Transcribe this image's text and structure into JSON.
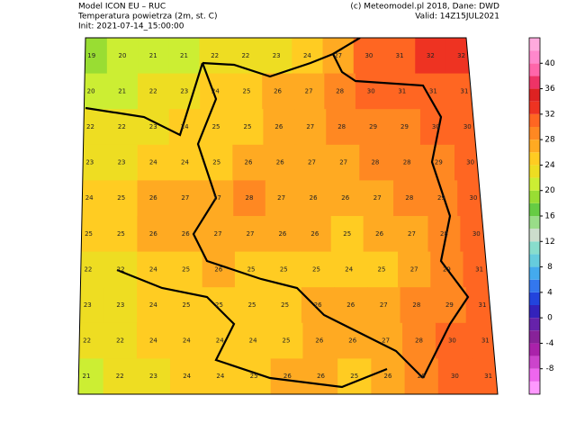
{
  "header": {
    "left": [
      "Model ICON EU – RUC",
      "Temperatura powietrza (2m, st. C)",
      "Init: 2021-07-14_15:00:00"
    ],
    "right": [
      "(c) Meteomodel.pl 2018, Dane: DWD",
      "Valid: 14Z15JUL2021"
    ]
  },
  "temperature_grid": [
    [
      19,
      20,
      21,
      21,
      22,
      22,
      23,
      24,
      27,
      30,
      31,
      32,
      32
    ],
    [
      20,
      21,
      22,
      23,
      24,
      25,
      26,
      27,
      28,
      30,
      31,
      31,
      31
    ],
    [
      22,
      22,
      23,
      24,
      25,
      25,
      26,
      27,
      28,
      29,
      29,
      30,
      30
    ],
    [
      23,
      23,
      24,
      24,
      25,
      26,
      26,
      27,
      27,
      28,
      28,
      29,
      30
    ],
    [
      24,
      25,
      26,
      27,
      27,
      28,
      27,
      26,
      26,
      27,
      28,
      29,
      30
    ],
    [
      25,
      25,
      26,
      26,
      27,
      27,
      26,
      26,
      25,
      26,
      27,
      28,
      30
    ],
    [
      22,
      22,
      24,
      25,
      26,
      25,
      25,
      25,
      24,
      25,
      27,
      29,
      31
    ],
    [
      23,
      23,
      24,
      25,
      25,
      25,
      25,
      26,
      26,
      27,
      28,
      29,
      31
    ],
    [
      22,
      22,
      24,
      24,
      24,
      24,
      25,
      26,
      26,
      27,
      28,
      30,
      31
    ],
    [
      21,
      22,
      23,
      24,
      24,
      25,
      26,
      26,
      25,
      26,
      28,
      30,
      31
    ]
  ],
  "colorbar": {
    "bins": [
      -12,
      -10,
      -8,
      -6,
      -4,
      -2,
      0,
      2,
      4,
      6,
      8,
      10,
      12,
      14,
      16,
      18,
      20,
      22,
      24,
      26,
      28,
      30,
      32,
      34,
      36,
      38,
      40,
      42,
      44
    ],
    "colors": [
      "#ff99ff",
      "#ee66ee",
      "#cc44cc",
      "#aa22aa",
      "#882299",
      "#6622aa",
      "#3322bb",
      "#2244dd",
      "#3377ee",
      "#44aaee",
      "#66ccdd",
      "#88ddcc",
      "#ccddcc",
      "#99dd88",
      "#66cc44",
      "#99dd33",
      "#ccee33",
      "#eedd22",
      "#ffcc22",
      "#ffaa22",
      "#ff8822",
      "#ff6622",
      "#ee3322",
      "#dd2222",
      "#ee3366",
      "#ff66aa",
      "#ff88cc",
      "#ffaadd"
    ],
    "ticks": [
      40,
      36,
      32,
      28,
      24,
      20,
      16,
      12,
      8,
      4,
      0,
      -4,
      -8
    ]
  }
}
